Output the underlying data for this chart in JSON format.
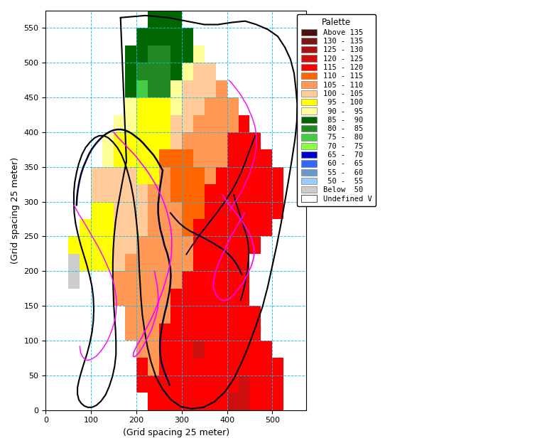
{
  "xlabel": "(Grid spacing 25 meter)",
  "ylabel": "(Grid spacing 25 meter)",
  "xlim": [
    0,
    575
  ],
  "ylim": [
    0,
    575
  ],
  "xticks": [
    0,
    100,
    200,
    300,
    400,
    500
  ],
  "yticks": [
    0,
    50,
    100,
    150,
    200,
    250,
    300,
    350,
    400,
    450,
    500,
    550
  ],
  "grid_color": "#00BFFF",
  "background_color": "#ffffff",
  "legend_title": "Palette",
  "palette": [
    {
      "label": "Above 135",
      "color": "#4a1010"
    },
    {
      "label": "130 - 135",
      "color": "#7a1818"
    },
    {
      "label": "125 - 130",
      "color": "#aa1010"
    },
    {
      "label": "120 - 125",
      "color": "#cc1010"
    },
    {
      "label": "115 - 120",
      "color": "#ff0000"
    },
    {
      "label": "110 - 115",
      "color": "#ff6600"
    },
    {
      "label": "105 - 110",
      "color": "#ff9955"
    },
    {
      "label": "100 - 105",
      "color": "#ffcc99"
    },
    {
      "label": " 95 - 100",
      "color": "#ffff00"
    },
    {
      "label": " 90 -  95",
      "color": "#ffff99"
    },
    {
      "label": " 85 -  90",
      "color": "#006600"
    },
    {
      "label": " 80 -  85",
      "color": "#228822"
    },
    {
      "label": " 75 -  80",
      "color": "#44cc44"
    },
    {
      "label": " 70 -  75",
      "color": "#88ff44"
    },
    {
      "label": " 65 -  70",
      "color": "#0000cc"
    },
    {
      "label": " 60 -  65",
      "color": "#3366ff"
    },
    {
      "label": " 55 -  60",
      "color": "#6699cc"
    },
    {
      "label": " 50 -  55",
      "color": "#99ccff"
    },
    {
      "label": "Below  50",
      "color": "#cccccc"
    },
    {
      "label": "Undefined V",
      "color": "#ffffff"
    }
  ],
  "cell_size": 25,
  "figsize": [
    7.63,
    6.3
  ],
  "dpi": 100
}
